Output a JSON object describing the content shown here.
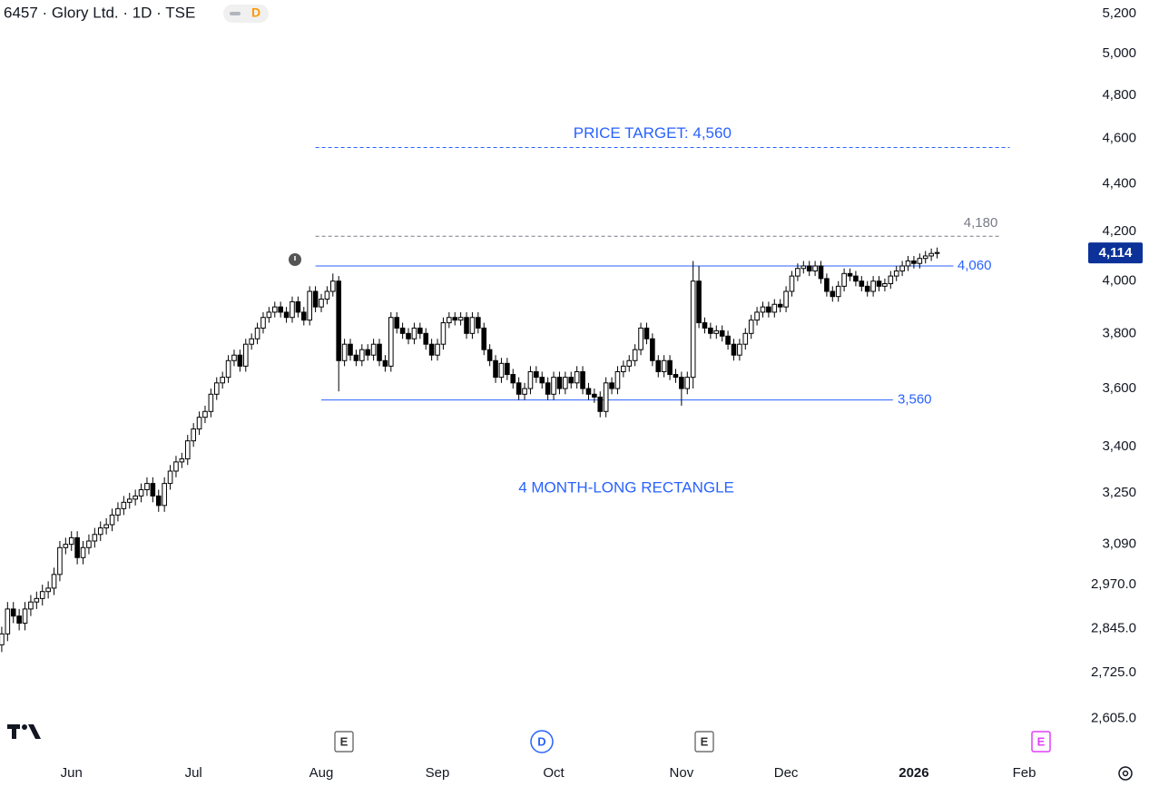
{
  "header": {
    "title": "6457 · Glory Ltd. · 1D · TSE",
    "badge": "D"
  },
  "chart_data": {
    "type": "candlestick",
    "log_scale": true,
    "up_color": "#ffffff",
    "down_color": "#000000",
    "outline_color": "#000000",
    "open": [
      2800,
      2830,
      2900,
      2880,
      2860,
      2900,
      2920,
      2930,
      2950,
      2960,
      3000,
      3080,
      3090,
      3110,
      3050,
      3080,
      3100,
      3120,
      3140,
      3150,
      3180,
      3200,
      3220,
      3230,
      3240,
      3260,
      3280,
      3240,
      3210,
      3280,
      3320,
      3350,
      3360,
      3420,
      3460,
      3500,
      3520,
      3580,
      3620,
      3640,
      3700,
      3720,
      3680,
      3760,
      3780,
      3820,
      3860,
      3880,
      3900,
      3880,
      3860,
      3920,
      3880,
      3850,
      3960,
      3900,
      3930,
      3960,
      4000,
      3700,
      3760,
      3720,
      3700,
      3740,
      3720,
      3760,
      3700,
      3680,
      3860,
      3820,
      3800,
      3780,
      3820,
      3800,
      3760,
      3720,
      3760,
      3840,
      3860,
      3850,
      3860,
      3800,
      3860,
      3820,
      3740,
      3700,
      3640,
      3690,
      3650,
      3620,
      3580,
      3600,
      3660,
      3640,
      3620,
      3580,
      3640,
      3600,
      3640,
      3620,
      3660,
      3600,
      3580,
      3570,
      3520,
      3620,
      3600,
      3660,
      3680,
      3700,
      3740,
      3820,
      3780,
      3700,
      3660,
      3700,
      3650,
      3640,
      3600,
      3640,
      4000,
      3840,
      3820,
      3800,
      3810,
      3790,
      3760,
      3720,
      3760,
      3800,
      3850,
      3880,
      3900,
      3880,
      3910,
      3900,
      3960,
      4020,
      4050,
      4060,
      4040,
      4060,
      4010,
      3960,
      3940,
      3980,
      4030,
      4020,
      4000,
      3980,
      3960,
      4000,
      3980,
      3990,
      4020,
      4040,
      4060,
      4080,
      4070,
      4090,
      4100,
      4110
    ],
    "high": [
      2850,
      2920,
      2920,
      2900,
      2920,
      2940,
      2950,
      2970,
      2980,
      3020,
      3100,
      3110,
      3130,
      3130,
      3100,
      3120,
      3140,
      3160,
      3170,
      3200,
      3220,
      3240,
      3250,
      3260,
      3280,
      3300,
      3300,
      3260,
      3300,
      3340,
      3370,
      3380,
      3440,
      3480,
      3520,
      3540,
      3600,
      3640,
      3660,
      3720,
      3740,
      3740,
      3780,
      3800,
      3840,
      3880,
      3900,
      3920,
      3920,
      3900,
      3940,
      3940,
      3900,
      3980,
      3980,
      3950,
      3980,
      4030,
      4020,
      3780,
      3780,
      3740,
      3760,
      3760,
      3780,
      3780,
      3720,
      3880,
      3880,
      3840,
      3820,
      3840,
      3840,
      3820,
      3780,
      3780,
      3860,
      3880,
      3880,
      3880,
      3880,
      3880,
      3880,
      3840,
      3760,
      3720,
      3710,
      3710,
      3670,
      3640,
      3620,
      3680,
      3680,
      3660,
      3640,
      3660,
      3660,
      3660,
      3660,
      3680,
      3680,
      3620,
      3600,
      3590,
      3640,
      3640,
      3680,
      3700,
      3720,
      3760,
      3840,
      3840,
      3800,
      3720,
      3720,
      3720,
      3670,
      3660,
      3660,
      4080,
      4060,
      3860,
      3840,
      3830,
      3830,
      3810,
      3780,
      3780,
      3820,
      3870,
      3900,
      3920,
      3920,
      3930,
      3930,
      3980,
      4040,
      4070,
      4080,
      4080,
      4080,
      4080,
      4030,
      3980,
      4000,
      4050,
      4050,
      4040,
      4020,
      4000,
      4020,
      4020,
      4010,
      4040,
      4060,
      4080,
      4100,
      4100,
      4110,
      4120,
      4130,
      4134
    ],
    "low": [
      2780,
      2810,
      2860,
      2840,
      2840,
      2880,
      2900,
      2910,
      2930,
      2940,
      2980,
      3060,
      3070,
      3030,
      3030,
      3060,
      3080,
      3100,
      3120,
      3130,
      3160,
      3180,
      3200,
      3210,
      3220,
      3240,
      3220,
      3190,
      3190,
      3260,
      3300,
      3330,
      3340,
      3400,
      3440,
      3480,
      3500,
      3560,
      3600,
      3620,
      3680,
      3660,
      3660,
      3740,
      3760,
      3800,
      3840,
      3860,
      3860,
      3840,
      3840,
      3860,
      3830,
      3830,
      3880,
      3880,
      3910,
      3940,
      3590,
      3680,
      3700,
      3680,
      3680,
      3700,
      3700,
      3680,
      3660,
      3660,
      3800,
      3780,
      3760,
      3760,
      3780,
      3740,
      3700,
      3700,
      3740,
      3820,
      3830,
      3830,
      3780,
      3780,
      3800,
      3720,
      3680,
      3620,
      3620,
      3630,
      3600,
      3560,
      3560,
      3580,
      3620,
      3600,
      3560,
      3560,
      3580,
      3580,
      3600,
      3600,
      3580,
      3560,
      3550,
      3500,
      3500,
      3580,
      3580,
      3640,
      3660,
      3680,
      3720,
      3760,
      3680,
      3640,
      3640,
      3630,
      3620,
      3540,
      3580,
      3600,
      3820,
      3800,
      3780,
      3780,
      3770,
      3740,
      3700,
      3700,
      3740,
      3780,
      3830,
      3860,
      3860,
      3860,
      3880,
      3880,
      3940,
      4000,
      4030,
      4020,
      4020,
      3990,
      3940,
      3920,
      3920,
      3960,
      4000,
      3980,
      3960,
      3940,
      3940,
      3960,
      3960,
      3970,
      4000,
      4020,
      4040,
      4050,
      4050,
      4070,
      4080,
      4090
    ],
    "close": [
      2830,
      2900,
      2880,
      2860,
      2900,
      2920,
      2930,
      2950,
      2960,
      3000,
      3080,
      3090,
      3110,
      3050,
      3080,
      3100,
      3120,
      3140,
      3150,
      3180,
      3200,
      3220,
      3230,
      3240,
      3260,
      3280,
      3240,
      3210,
      3280,
      3320,
      3350,
      3360,
      3420,
      3460,
      3500,
      3520,
      3580,
      3620,
      3640,
      3700,
      3720,
      3680,
      3760,
      3780,
      3820,
      3860,
      3880,
      3900,
      3880,
      3860,
      3920,
      3880,
      3850,
      3960,
      3900,
      3930,
      3960,
      4000,
      3700,
      3760,
      3720,
      3700,
      3740,
      3720,
      3760,
      3700,
      3680,
      3860,
      3820,
      3800,
      3780,
      3820,
      3800,
      3760,
      3720,
      3760,
      3840,
      3860,
      3850,
      3860,
      3800,
      3860,
      3820,
      3740,
      3700,
      3640,
      3690,
      3650,
      3620,
      3580,
      3600,
      3660,
      3640,
      3620,
      3580,
      3640,
      3600,
      3640,
      3620,
      3660,
      3600,
      3580,
      3570,
      3520,
      3620,
      3600,
      3660,
      3680,
      3700,
      3740,
      3820,
      3780,
      3700,
      3660,
      3700,
      3650,
      3640,
      3600,
      3640,
      4000,
      3840,
      3820,
      3800,
      3810,
      3790,
      3760,
      3720,
      3760,
      3800,
      3850,
      3880,
      3900,
      3880,
      3910,
      3900,
      3960,
      4020,
      4050,
      4060,
      4040,
      4060,
      4010,
      3960,
      3940,
      3980,
      4030,
      4020,
      4000,
      3980,
      3960,
      4000,
      3980,
      3990,
      4020,
      4040,
      4060,
      4080,
      4070,
      4090,
      4100,
      4110,
      4114
    ],
    "xlim": [
      -0.3,
      185.6
    ],
    "xticks": [
      {
        "value": 12,
        "label": "Jun"
      },
      {
        "value": 33,
        "label": "Jul"
      },
      {
        "value": 55,
        "label": "Aug"
      },
      {
        "value": 75,
        "label": "Sep"
      },
      {
        "value": 95,
        "label": "Oct"
      },
      {
        "value": 117,
        "label": "Nov"
      },
      {
        "value": 135,
        "label": "Dec"
      },
      {
        "value": 157,
        "label": "2026"
      },
      {
        "value": 176,
        "label": "Feb"
      }
    ],
    "ylim": [
      2517,
      5270
    ],
    "yticks": [
      {
        "value": 5200,
        "label": "5,200"
      },
      {
        "value": 5000,
        "label": "5,000"
      },
      {
        "value": 4800,
        "label": "4,800"
      },
      {
        "value": 4600,
        "label": "4,600"
      },
      {
        "value": 4400,
        "label": "4,400"
      },
      {
        "value": 4200,
        "label": "4,200"
      },
      {
        "value": 4000,
        "label": "4,000"
      },
      {
        "value": 3800,
        "label": "3,800"
      },
      {
        "value": 3600,
        "label": "3,600"
      },
      {
        "value": 3400,
        "label": "3,400"
      },
      {
        "value": 3250,
        "label": "3,250"
      },
      {
        "value": 3090,
        "label": "3,090"
      },
      {
        "value": 2970,
        "label": "2,970.0"
      },
      {
        "value": 2845,
        "label": "2,845.0"
      },
      {
        "value": 2725,
        "label": "2,725.0"
      },
      {
        "value": 2605,
        "label": "2,605.0"
      }
    ],
    "last_price": {
      "value": 4114,
      "label": "4,114"
    },
    "levels": [
      {
        "value": 4560,
        "label": "PRICE TARGET: 4,560",
        "color": "#2962ff",
        "dashed": true
      },
      {
        "value": 4180,
        "label": "4,180",
        "color": "#787b86",
        "dashed": true
      },
      {
        "value": 4060,
        "label": "4,060",
        "color": "#2962ff",
        "dashed": false
      },
      {
        "value": 3560,
        "label": "3,560",
        "color": "#2962ff",
        "dashed": false
      }
    ],
    "annotation": "4 MONTH-LONG RECTANGLE",
    "events": [
      "E",
      "D",
      "E",
      "E"
    ]
  }
}
